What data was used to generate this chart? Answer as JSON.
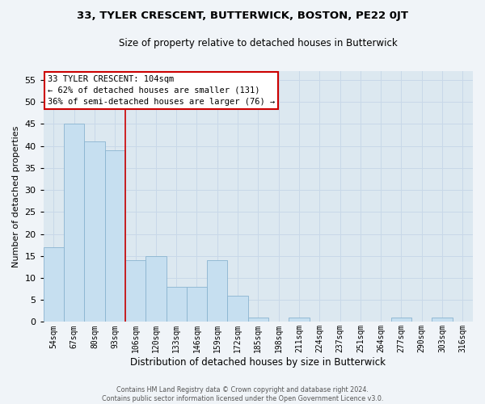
{
  "title": "33, TYLER CRESCENT, BUTTERWICK, BOSTON, PE22 0JT",
  "subtitle": "Size of property relative to detached houses in Butterwick",
  "xlabel": "Distribution of detached houses by size in Butterwick",
  "ylabel": "Number of detached properties",
  "bin_labels": [
    "54sqm",
    "67sqm",
    "80sqm",
    "93sqm",
    "106sqm",
    "120sqm",
    "133sqm",
    "146sqm",
    "159sqm",
    "172sqm",
    "185sqm",
    "198sqm",
    "211sqm",
    "224sqm",
    "237sqm",
    "251sqm",
    "264sqm",
    "277sqm",
    "290sqm",
    "303sqm",
    "316sqm"
  ],
  "bar_values": [
    17,
    45,
    41,
    39,
    14,
    15,
    8,
    8,
    14,
    6,
    1,
    0,
    1,
    0,
    0,
    0,
    0,
    1,
    0,
    1,
    0
  ],
  "bar_color": "#c6dff0",
  "bar_edge_color": "#8ab4d0",
  "annotation_title": "33 TYLER CRESCENT: 104sqm",
  "annotation_line1": "← 62% of detached houses are smaller (131)",
  "annotation_line2": "36% of semi-detached houses are larger (76) →",
  "annotation_box_color": "#ffffff",
  "annotation_box_edge": "#cc0000",
  "ylim": [
    0,
    57
  ],
  "yticks": [
    0,
    5,
    10,
    15,
    20,
    25,
    30,
    35,
    40,
    45,
    50,
    55
  ],
  "footer_line1": "Contains HM Land Registry data © Crown copyright and database right 2024.",
  "footer_line2": "Contains public sector information licensed under the Open Government Licence v3.0.",
  "grid_color": "#c8d8e8",
  "bg_color": "#dce8f0",
  "fig_bg_color": "#f0f4f8"
}
